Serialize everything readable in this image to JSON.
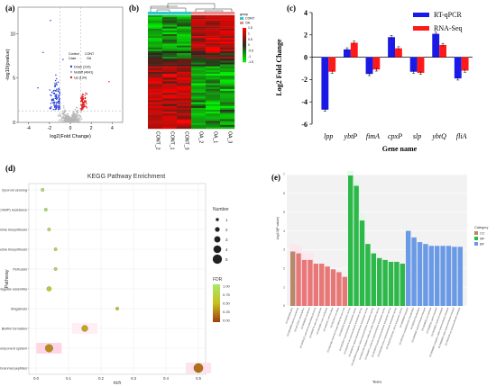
{
  "panels": {
    "a": "(a)",
    "b": "(b)",
    "c": "(c)",
    "d": "(d)",
    "e": "(e)"
  },
  "colors": {
    "down": "#2b3fd6",
    "up": "#e02020",
    "nodiff": "#b5b5b5",
    "cont": "#30c8cc",
    "oa": "#f08a8a",
    "rtqpcr": "#1a1ae6",
    "rnaseq": "#ff1a1a",
    "cc": "#b38a6a",
    "mf": "#2db84a",
    "bp": "#6a9ae6"
  },
  "chart_data": [
    {
      "type": "scatter",
      "panel": "a",
      "xlabel": "log2(Fold Change)",
      "ylabel": "-log10(pvalue)",
      "x_ticks": [
        "-4",
        "-2",
        "0",
        "2",
        "4"
      ],
      "y_ticks": [
        "0",
        "5",
        "10"
      ],
      "legend_header": [
        "Control",
        "CONT"
      ],
      "legend_case": [
        "Case",
        "OA"
      ],
      "legend": [
        "Down (215)",
        "NoDiff (4041)",
        "Up (134)"
      ],
      "counts": {
        "down": 215,
        "nodiff": 4041,
        "up": 134
      }
    },
    {
      "type": "heatmap",
      "panel": "b",
      "columns": [
        "CONT_2",
        "CONT_1",
        "CONT_3",
        "OA_2",
        "OA_1",
        "OA_3"
      ],
      "groups": [
        "CONT",
        "CONT",
        "CONT",
        "OA",
        "OA",
        "OA"
      ],
      "legend_title": "group",
      "legend_entries": [
        "CONT",
        "OA"
      ],
      "scale_ticks": [
        "1.5",
        "1",
        "0.5",
        "0",
        "-0.5",
        "-1",
        "-1.5"
      ]
    },
    {
      "type": "bar",
      "panel": "c",
      "categories": [
        "lpp",
        "ybtP",
        "fimA",
        "cpxP",
        "slp",
        "ybtQ",
        "fliA"
      ],
      "series": [
        {
          "name": "RT-qPCR",
          "values": [
            -4.7,
            0.7,
            -1.5,
            1.8,
            -1.3,
            2.1,
            -1.9
          ]
        },
        {
          "name": "RNA-Seq",
          "values": [
            -1.3,
            1.3,
            -1.1,
            0.8,
            -1.4,
            1.1,
            -1.2
          ]
        }
      ],
      "xlabel": "Gene name",
      "ylabel": "Log2 Fold Change",
      "ylim": [
        -6,
        4
      ],
      "y_ticks": [
        "-6",
        "-4",
        "-2",
        "0",
        "2",
        "4"
      ]
    },
    {
      "type": "scatter",
      "panel": "d",
      "title": "KEGG Pathway Enrichment",
      "xlabel": "rich",
      "ylabel": "Pathway",
      "x_ticks": [
        "0.0",
        "0.1",
        "0.2",
        "0.3",
        "0.4",
        "0.5"
      ],
      "xlim": [
        0,
        0.5
      ],
      "pathways": [
        "Quorum sensing",
        "Cationic antimicrobial peptide (CAMP) resistance",
        "Arginine biosynthesis",
        "Lysine biosynthesis",
        "Pertussis",
        "Flagellar assembly",
        "Shigellosis",
        "Biofilm formation",
        "Two-component system",
        "Biosynthesis of siderophore group nonribosomal peptides"
      ],
      "rich": [
        0.02,
        0.03,
        0.04,
        0.06,
        0.06,
        0.04,
        0.25,
        0.15,
        0.04,
        0.5
      ],
      "number": [
        1,
        1,
        1,
        1,
        1,
        2,
        1,
        3,
        4,
        5
      ],
      "fdr": [
        0.9,
        0.9,
        0.85,
        0.85,
        0.85,
        0.6,
        0.5,
        0.4,
        0.3,
        0.2
      ],
      "size_legend_title": "Number",
      "size_legend": [
        "1",
        "2",
        "3",
        "4",
        "5"
      ],
      "color_legend_title": "FDR",
      "color_legend_ticks": [
        "1.00",
        "0.75",
        "0.50",
        "0.25",
        "0.00"
      ]
    },
    {
      "type": "bar",
      "panel": "e",
      "xlabel": "Term",
      "ylabel": "-log10(P value)",
      "y_ticks": [
        "0",
        "1",
        "2",
        "3",
        "4",
        "5",
        "6",
        "7"
      ],
      "ylim": [
        0,
        7
      ],
      "legend_title": "Category",
      "legend": [
        "CC",
        "MF",
        "BP"
      ],
      "categories_per_bar": [
        "CC",
        "CC",
        "CC",
        "CC",
        "CC",
        "CC",
        "CC",
        "CC",
        "CC",
        "CC",
        "MF",
        "MF",
        "MF",
        "MF",
        "MF",
        "MF",
        "MF",
        "MF",
        "MF",
        "MF",
        "BP",
        "BP",
        "BP",
        "BP",
        "BP",
        "BP",
        "BP",
        "BP",
        "BP",
        "BP"
      ],
      "values": [
        2.9,
        2.8,
        2.45,
        2.45,
        2.25,
        2.25,
        2.1,
        1.95,
        1.8,
        1.55,
        6.95,
        6.4,
        4.55,
        3.3,
        2.8,
        2.55,
        2.45,
        2.35,
        2.35,
        2.25,
        4.0,
        3.65,
        3.4,
        3.3,
        3.2,
        3.2,
        3.2,
        3.2,
        3.15,
        3.15
      ],
      "terms": [
        "GO:0009289 pilus",
        "GO:0005886 plasma membrane",
        "GO:0071944 cell periphery",
        "GO:0016020 membrane",
        "GO:0030312 external encapsulating structure",
        "GO:0009279 cell outer membrane",
        "GO:0019867 outer membrane",
        "GO:0030313 cell envelope",
        "GO:0031975 envelope",
        "GO:0044462 external encapsulating structure part",
        "GO:0005215 transporter activity",
        "GO:0022857 transmembrane transporter activity",
        "GO:0015075 ion transmembrane transporter activity",
        "GO:0008324 cation transmembrane transporter activity",
        "GO:0022890 inorganic cation transmembrane transporter activity",
        "GO:0015318 inorganic molecular entity transporter activity",
        "GO:0046873 metal ion transmembrane transporter activity",
        "GO:0015078 proton transmembrane transporter activity",
        "GO:0022804 active transmembrane transporter activity",
        "GO:0015399 primary active transporter activity",
        "GO:0006810 transport",
        "GO:0051234 establishment of localization",
        "GO:0051179 localization",
        "GO:0055085 transmembrane transport",
        "GO:0006811 ion transport",
        "GO:0006812 cation transport",
        "GO:0030001 metal ion transport",
        "GO:0098662 inorganic cation transmembrane transport",
        "GO:0098655 cation transmembrane transport",
        "GO:0034220 ion transmembrane transport"
      ]
    }
  ]
}
